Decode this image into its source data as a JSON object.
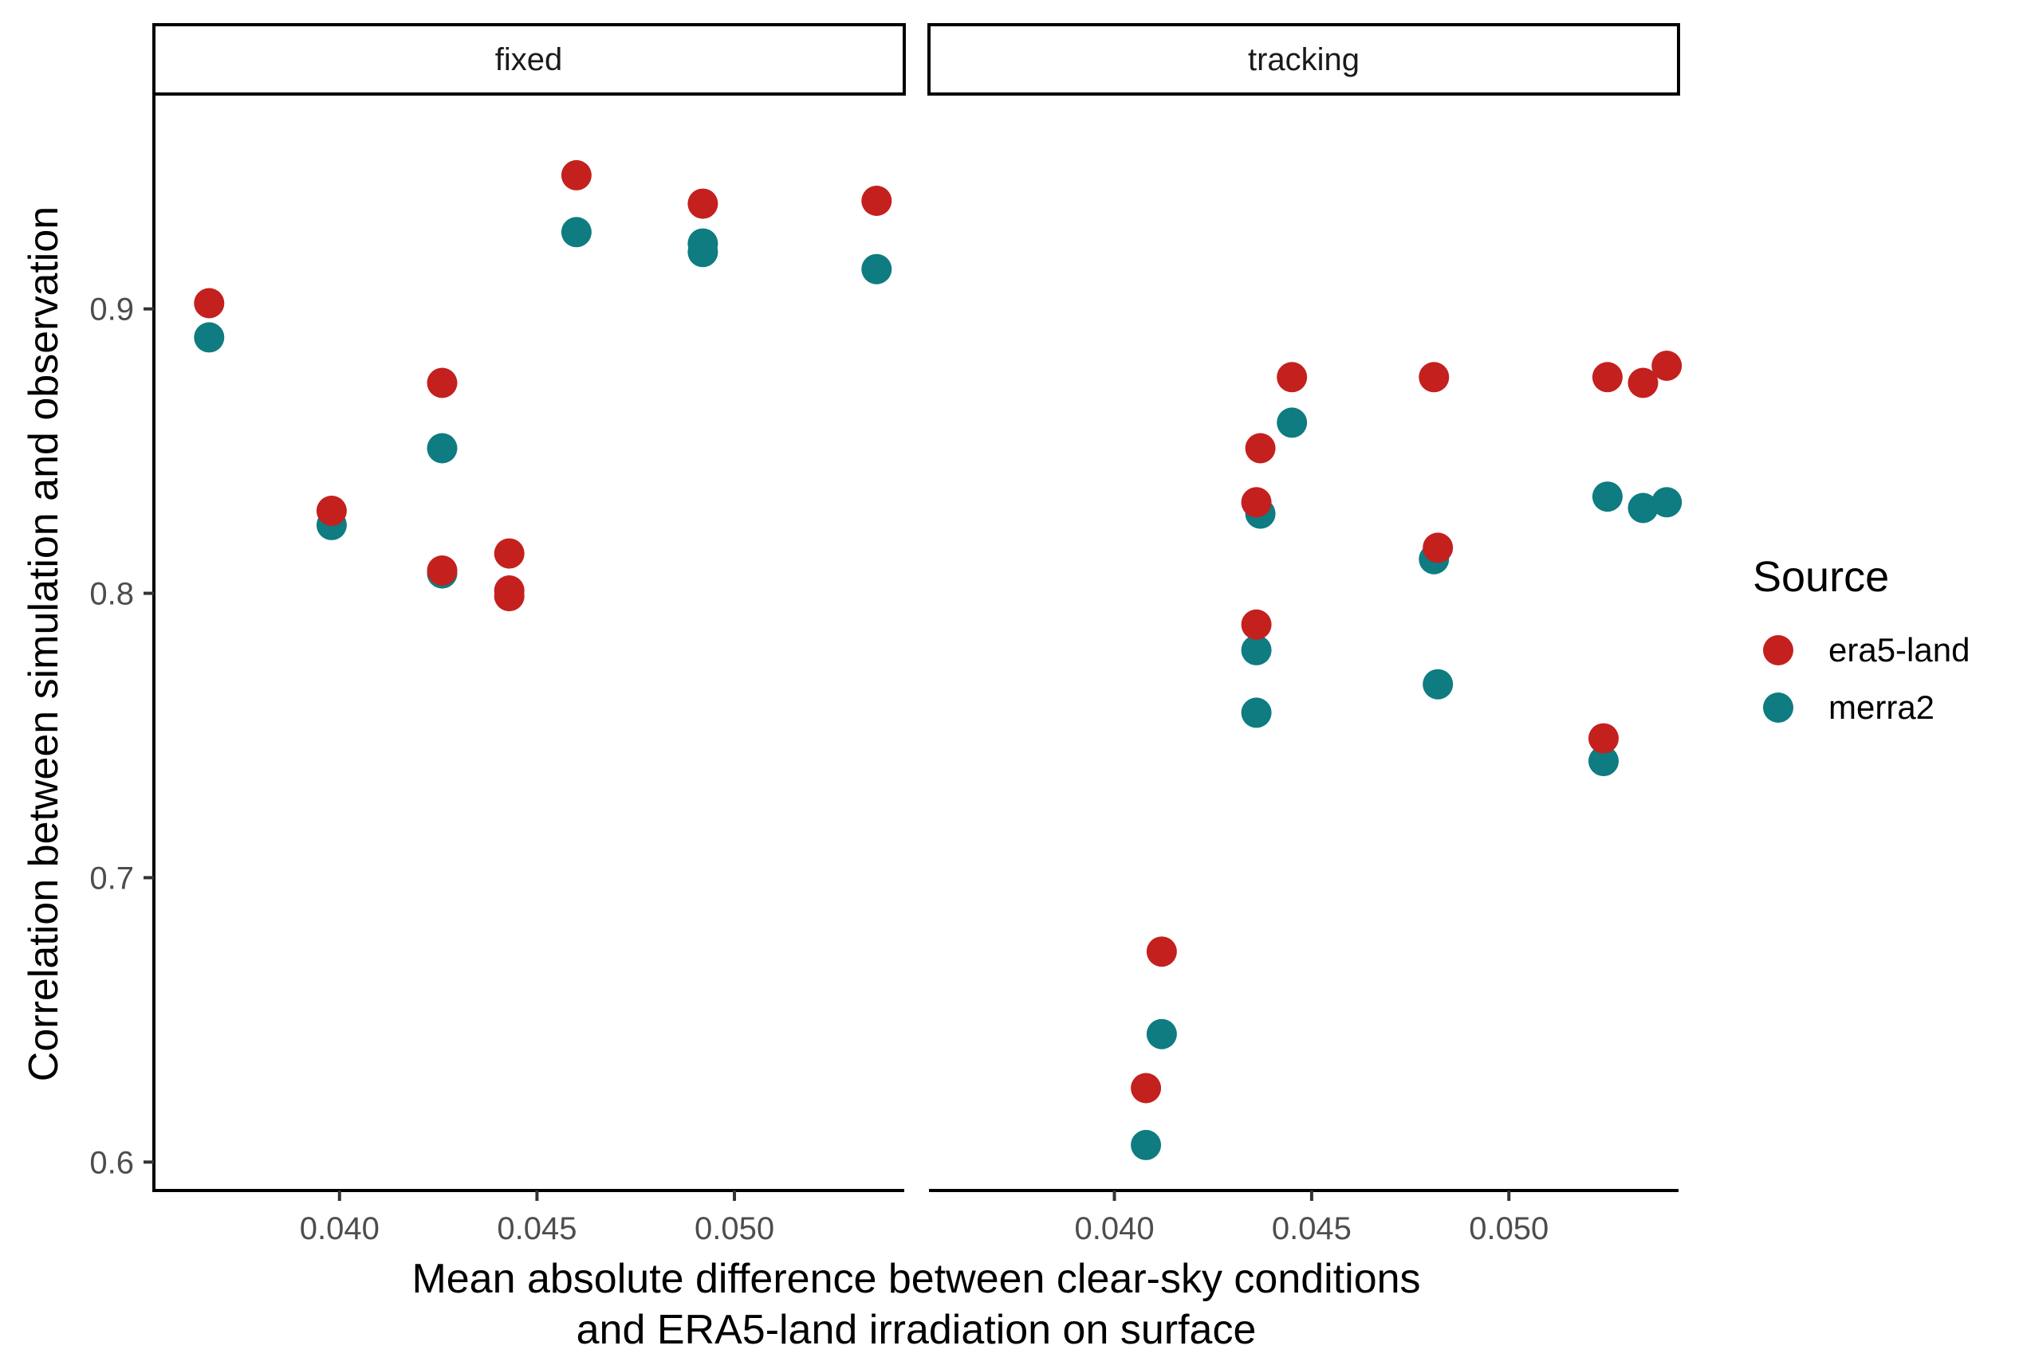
{
  "chart_data": {
    "type": "scatter",
    "title": "",
    "xlabel_line1": "Mean absolute difference between clear-sky conditions",
    "xlabel_line2": "and ERA5-land irradiation on surface",
    "ylabel": "Correlation between simulation and observation",
    "xlim": [
      0.0353,
      0.0543
    ],
    "ylim": [
      0.59,
      0.975
    ],
    "x_ticks": [
      0.04,
      0.045,
      0.05
    ],
    "x_tick_labels": [
      "0.040",
      "0.045",
      "0.050"
    ],
    "y_ticks": [
      0.6,
      0.7,
      0.8,
      0.9
    ],
    "y_tick_labels": [
      "0.6",
      "0.7",
      "0.8",
      "0.9"
    ],
    "grid": false,
    "legend": {
      "title": "Source",
      "position": "right",
      "entries": [
        {
          "label": "era5-land",
          "color": "#C4201E"
        },
        {
          "label": "merra2",
          "color": "#0E7C80"
        }
      ]
    },
    "panels": [
      {
        "name": "fixed",
        "series": [
          {
            "name": "era5-land",
            "color": "#C4201E",
            "points": [
              [
                0.0398,
                0.829
              ],
              [
                0.0426,
                0.874
              ],
              [
                0.0426,
                0.808
              ],
              [
                0.0443,
                0.814
              ],
              [
                0.0443,
                0.801
              ],
              [
                0.0443,
                0.799
              ],
              [
                0.046,
                0.947
              ],
              [
                0.0492,
                0.937
              ],
              [
                0.0536,
                0.938
              ],
              [
                0.0367,
                0.902
              ]
            ]
          },
          {
            "name": "merra2",
            "color": "#0E7C80",
            "points": [
              [
                0.0398,
                0.824
              ],
              [
                0.0426,
                0.851
              ],
              [
                0.0426,
                0.807
              ],
              [
                0.046,
                0.927
              ],
              [
                0.0492,
                0.923
              ],
              [
                0.0492,
                0.92
              ],
              [
                0.0536,
                0.914
              ],
              [
                0.0367,
                0.89
              ]
            ]
          }
        ]
      },
      {
        "name": "tracking",
        "series": [
          {
            "name": "era5-land",
            "color": "#C4201E",
            "points": [
              [
                0.0408,
                0.626
              ],
              [
                0.0412,
                0.674
              ],
              [
                0.0436,
                0.789
              ],
              [
                0.0436,
                0.832
              ],
              [
                0.0437,
                0.851
              ],
              [
                0.0445,
                0.876
              ],
              [
                0.0481,
                0.876
              ],
              [
                0.0482,
                0.816
              ],
              [
                0.0525,
                0.876
              ],
              [
                0.0524,
                0.749
              ],
              [
                0.0534,
                0.874
              ],
              [
                0.054,
                0.88
              ]
            ]
          },
          {
            "name": "merra2",
            "color": "#0E7C80",
            "points": [
              [
                0.0408,
                0.606
              ],
              [
                0.0412,
                0.645
              ],
              [
                0.0436,
                0.758
              ],
              [
                0.0436,
                0.78
              ],
              [
                0.0437,
                0.828
              ],
              [
                0.0445,
                0.86
              ],
              [
                0.0481,
                0.812
              ],
              [
                0.0482,
                0.768
              ],
              [
                0.0525,
                0.834
              ],
              [
                0.0524,
                0.741
              ],
              [
                0.0534,
                0.83
              ],
              [
                0.054,
                0.832
              ]
            ]
          }
        ]
      }
    ]
  }
}
